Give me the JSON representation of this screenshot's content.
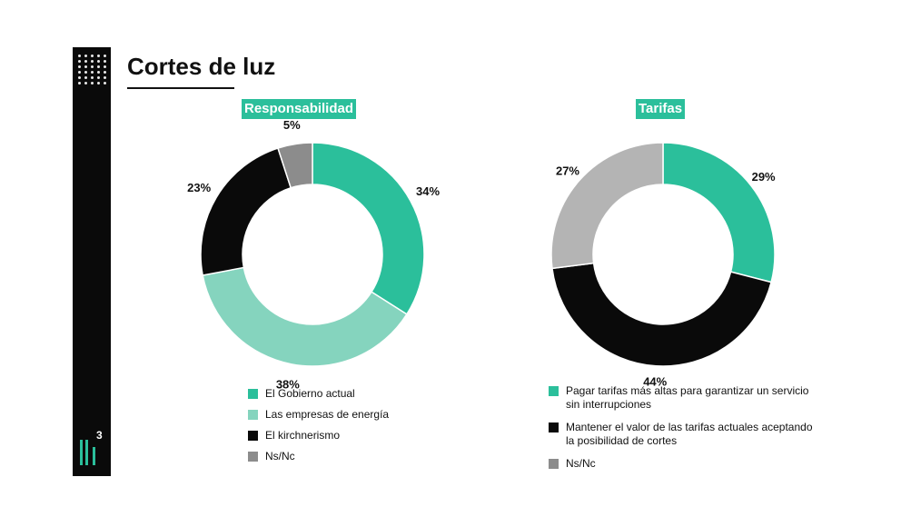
{
  "page_title": "Cortes de luz",
  "logo_superscript": "3",
  "colors": {
    "teal": "#2bbf9b",
    "light_teal": "#85d4be",
    "black": "#0a0a0a",
    "gray": "#8c8c8c",
    "light_gray": "#b4b4b4"
  },
  "chart_data": [
    {
      "type": "pie",
      "title": "Responsabilidad",
      "categories": [
        "El Gobierno actual",
        "Las empresas de energía",
        "El kirchnerismo",
        "Ns/Nc"
      ],
      "values": [
        34,
        38,
        23,
        5
      ],
      "labels": [
        "34%",
        "38%",
        "23%",
        "5%"
      ],
      "colors": [
        "#2bbf9b",
        "#85d4be",
        "#0a0a0a",
        "#8c8c8c"
      ],
      "legend_position": "bottom"
    },
    {
      "type": "pie",
      "title": "Tarifas",
      "categories": [
        "Pagar tarifas más altas para garantizar un servicio sin interrupciones",
        "Mantener el valor de las tarifas actuales aceptando la posibilidad de cortes",
        "Ns/Nc"
      ],
      "values": [
        29,
        44,
        27
      ],
      "labels": [
        "29%",
        "44%",
        "27%"
      ],
      "colors": [
        "#2bbf9b",
        "#0a0a0a",
        "#b4b4b4"
      ],
      "legend_colors": [
        "#2bbf9b",
        "#0a0a0a",
        "#8c8c8c"
      ],
      "legend_position": "bottom"
    }
  ]
}
